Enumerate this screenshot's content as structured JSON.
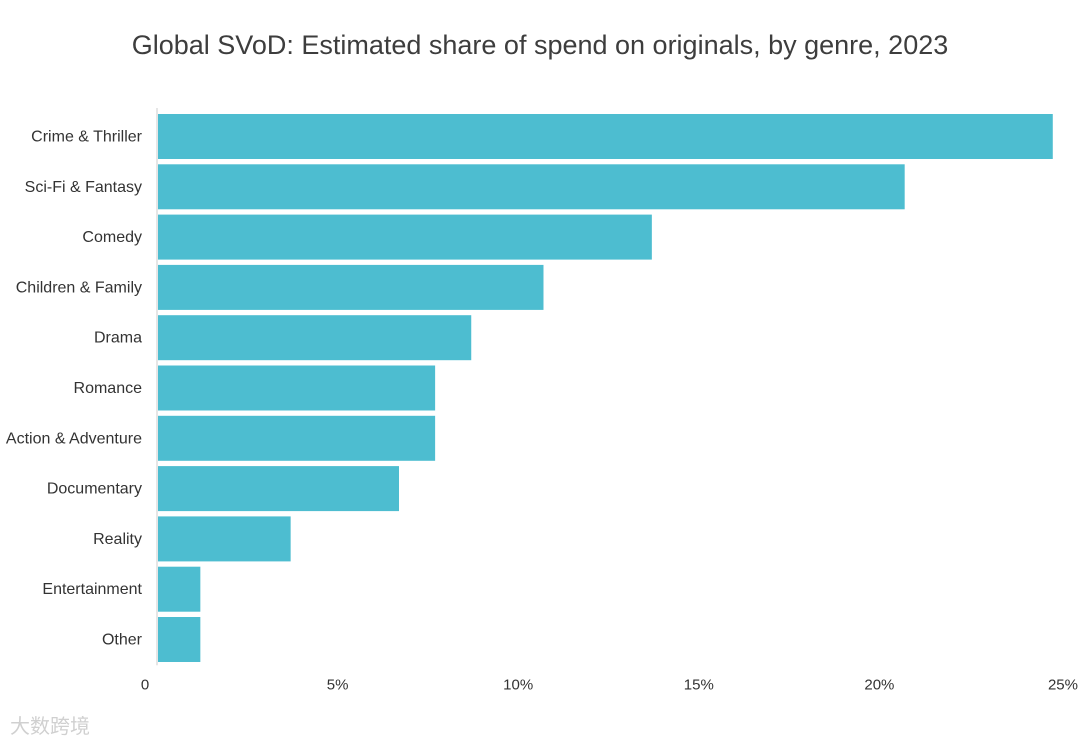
{
  "chart_data": {
    "type": "bar",
    "orientation": "horizontal",
    "title": "Global SVoD: Estimated share of spend on originals, by genre, 2023",
    "categories": [
      "Crime & Thriller",
      "Sci-Fi & Fantasy",
      "Comedy",
      "Children & Family",
      "Drama",
      "Romance",
      "Action & Adventure",
      "Documentary",
      "Reality",
      "Entertainment",
      "Other"
    ],
    "values": [
      24.8,
      20.7,
      13.7,
      10.7,
      8.7,
      7.7,
      7.7,
      6.7,
      3.7,
      1.2,
      1.2
    ],
    "xlim": [
      0,
      25
    ],
    "x_ticks": [
      0,
      5,
      10,
      15,
      20,
      25
    ],
    "x_tick_labels": [
      "0",
      "5%",
      "10%",
      "15%",
      "20%",
      "25%"
    ],
    "bar_color": "#4dbdd0",
    "grid": false,
    "legend": "none"
  },
  "watermark": "大数跨境"
}
